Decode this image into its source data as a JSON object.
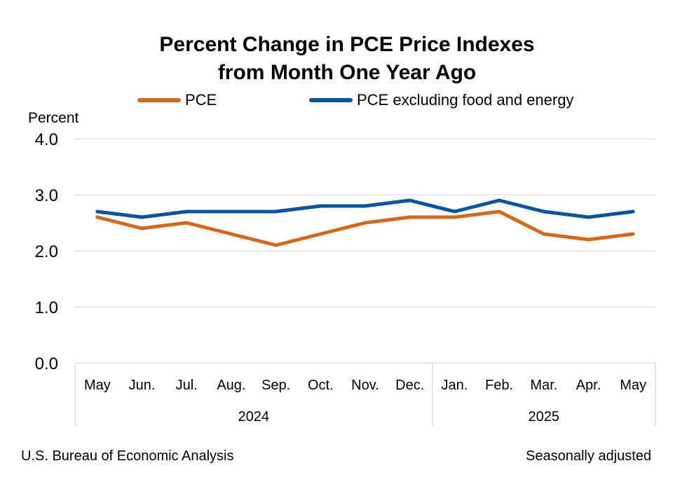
{
  "chart_data": {
    "type": "line",
    "title_lines": [
      "Percent Change in PCE Price Indexes",
      "from Month One Year Ago"
    ],
    "ylabel": "Percent",
    "ylim": [
      0,
      4
    ],
    "yticks": [
      "0.0",
      "1.0",
      "2.0",
      "3.0",
      "4.0"
    ],
    "ytick_values": [
      0,
      1,
      2,
      3,
      4
    ],
    "categories": [
      "May",
      "Jun.",
      "Jul.",
      "Aug.",
      "Sep.",
      "Oct.",
      "Nov.",
      "Dec.",
      "Jan.",
      "Feb.",
      "Mar.",
      "Apr.",
      "May"
    ],
    "year_groups": [
      {
        "label": "2024",
        "count": 8
      },
      {
        "label": "2025",
        "count": 5
      }
    ],
    "series": [
      {
        "name": "PCE",
        "color": "#D2691E",
        "values": [
          2.6,
          2.4,
          2.5,
          2.3,
          2.1,
          2.3,
          2.5,
          2.6,
          2.6,
          2.7,
          2.3,
          2.2,
          2.3
        ]
      },
      {
        "name": "PCE excluding food and energy",
        "color": "#0B539C",
        "values": [
          2.7,
          2.6,
          2.7,
          2.7,
          2.7,
          2.8,
          2.8,
          2.9,
          2.7,
          2.9,
          2.7,
          2.6,
          2.7
        ]
      }
    ],
    "grid": true,
    "legend_position": "top"
  },
  "footer": {
    "source": "U.S. Bureau of Economic Analysis",
    "note": "Seasonally adjusted"
  }
}
